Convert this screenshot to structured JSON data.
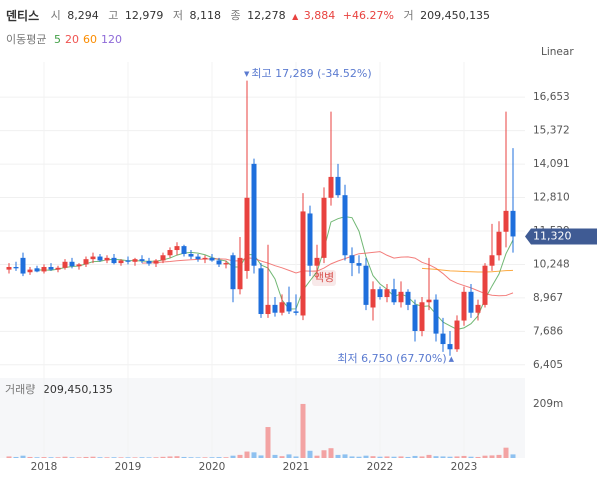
{
  "chart_data": {
    "type": "candlestick",
    "header": {
      "name": "덴티스",
      "open_label": "시",
      "open": "8,294",
      "high_label": "고",
      "high": "12,979",
      "low_label": "저",
      "low": "8,118",
      "close_label": "종",
      "close": "12,278",
      "change_arrow": "▲",
      "change": "3,884",
      "change_pct": "+46.27%",
      "volume_label": "거",
      "volume": "209,450,135"
    },
    "ma_label": "이동평균",
    "scale_label": "Linear",
    "event_label": "액병",
    "high_annotation": {
      "arrow": "▼",
      "text": "최고 17,289 (-34.52%)"
    },
    "low_annotation": {
      "arrow": "▲",
      "text": "최저 6,750 (67.70%)"
    },
    "categories": [
      null,
      null,
      null,
      null,
      null,
      "2018",
      null,
      null,
      null,
      null,
      null,
      null,
      null,
      null,
      null,
      null,
      null,
      "2019",
      null,
      null,
      null,
      null,
      null,
      null,
      null,
      null,
      null,
      null,
      null,
      "2020",
      null,
      null,
      null,
      null,
      null,
      null,
      null,
      null,
      null,
      null,
      null,
      "2021",
      null,
      null,
      null,
      null,
      null,
      null,
      null,
      null,
      null,
      null,
      null,
      "2022",
      null,
      null,
      null,
      null,
      null,
      null,
      null,
      null,
      null,
      null,
      null,
      "2023",
      null,
      null,
      null,
      null,
      null,
      null,
      null
    ],
    "candles": {
      "up_color": "#e8423f",
      "down_color": "#1f6fdc",
      "open": [
        10050,
        10150,
        10500,
        9950,
        10100,
        9980,
        10150,
        10050,
        10120,
        10350,
        10180,
        10250,
        10450,
        10550,
        10400,
        10500,
        10300,
        10400,
        10350,
        10450,
        10380,
        10280,
        10400,
        10600,
        10800,
        10950,
        10650,
        10550,
        10450,
        10500,
        10400,
        10250,
        10600,
        9300,
        10000,
        14100,
        10100,
        8350,
        8700,
        8400,
        8800,
        8450,
        8294,
        12200,
        10200,
        10500,
        12800,
        13600,
        12900,
        10600,
        10300,
        10200,
        8600,
        9300,
        9000,
        9300,
        8800,
        9200,
        8700,
        7700,
        8800,
        8900,
        7600,
        7200,
        7000,
        8100,
        9200,
        8400,
        8700,
        10200,
        10600,
        11500,
        12300
      ],
      "high": [
        10300,
        10350,
        10700,
        10150,
        10200,
        10250,
        10300,
        10200,
        10450,
        10500,
        10300,
        10550,
        10700,
        10650,
        10600,
        10650,
        10450,
        10550,
        10500,
        10600,
        10500,
        10450,
        10700,
        10900,
        11100,
        11000,
        10800,
        10650,
        10600,
        10650,
        10500,
        10400,
        10700,
        11300,
        17289,
        14300,
        10300,
        11000,
        9000,
        9100,
        9400,
        9100,
        12979,
        12500,
        11000,
        13200,
        16100,
        14100,
        13300,
        10900,
        10600,
        10500,
        9600,
        9400,
        9500,
        9700,
        9600,
        9300,
        8900,
        9000,
        10500,
        9100,
        8200,
        7700,
        8300,
        9400,
        9500,
        8900,
        10300,
        11800,
        11900,
        16100,
        14700
      ],
      "low": [
        9900,
        10000,
        9800,
        9850,
        9950,
        9900,
        10000,
        9950,
        10050,
        10100,
        10050,
        10150,
        10300,
        10350,
        10300,
        10250,
        10200,
        10250,
        10200,
        10300,
        10200,
        10150,
        10300,
        10500,
        10600,
        10550,
        10450,
        10350,
        10300,
        10350,
        10150,
        10100,
        8800,
        9100,
        9700,
        9900,
        8200,
        8200,
        8250,
        8300,
        8350,
        8300,
        8118,
        9800,
        9700,
        10300,
        12500,
        12800,
        10400,
        9800,
        9900,
        8500,
        8100,
        8900,
        8800,
        8700,
        8600,
        8500,
        7300,
        7500,
        8500,
        7300,
        6900,
        6750,
        6900,
        7900,
        8200,
        8100,
        8600,
        10000,
        10400,
        10900,
        10700
      ],
      "close": [
        10150,
        10100,
        9900,
        10050,
        9980,
        10150,
        10050,
        10120,
        10350,
        10180,
        10250,
        10450,
        10550,
        10400,
        10500,
        10300,
        10400,
        10350,
        10450,
        10380,
        10280,
        10400,
        10600,
        10800,
        10950,
        10650,
        10550,
        10450,
        10500,
        10400,
        10250,
        10300,
        9300,
        10500,
        12800,
        10200,
        8350,
        8700,
        8400,
        8800,
        8450,
        8394,
        12278,
        10200,
        10500,
        12800,
        13600,
        12900,
        10600,
        10300,
        10200,
        8700,
        9300,
        9000,
        9300,
        8800,
        9200,
        8700,
        7700,
        8800,
        8900,
        7600,
        7200,
        7000,
        8100,
        9200,
        8400,
        8700,
        10200,
        10600,
        11500,
        12300,
        11320
      ]
    },
    "series": [
      {
        "name": "5",
        "color": "#43a047",
        "values": [
          null,
          null,
          null,
          null,
          10036,
          10036,
          10026,
          10070,
          10130,
          10170,
          10190,
          10270,
          10356,
          10366,
          10430,
          10440,
          10430,
          10390,
          10400,
          10376,
          10372,
          10372,
          10422,
          10492,
          10606,
          10680,
          10710,
          10680,
          10620,
          10510,
          10430,
          10380,
          10150,
          10150,
          10630,
          10620,
          10230,
          10110,
          9690,
          8890,
          8540,
          8549,
          9264,
          9624,
          9964,
          10834,
          11876,
          12000,
          12080,
          12040,
          11520,
          10540,
          9820,
          9500,
          9300,
          9020,
          9120,
          9000,
          8740,
          8640,
          8660,
          8340,
          8040,
          7900,
          7760,
          7820,
          7980,
          8280,
          8920,
          9420,
          9880,
          10660,
          11184
        ]
      },
      {
        "name": "20",
        "color": "#ef5350",
        "values": [
          null,
          null,
          null,
          null,
          null,
          null,
          null,
          null,
          null,
          null,
          null,
          null,
          null,
          null,
          null,
          null,
          null,
          null,
          null,
          10300,
          10310,
          10320,
          10340,
          10360,
          10390,
          10410,
          10430,
          10440,
          10450,
          10460,
          10460,
          10450,
          10380,
          10390,
          10500,
          10480,
          10380,
          10300,
          10200,
          10120,
          10020,
          9920,
          10000,
          9990,
          9990,
          10110,
          10270,
          10380,
          10470,
          10570,
          10660,
          10680,
          10710,
          10740,
          10600,
          10490,
          10530,
          10540,
          10490,
          10330,
          10240,
          10100,
          9900,
          9660,
          9530,
          9440,
          9350,
          9240,
          9130,
          9070,
          9050,
          9060,
          9160
        ]
      },
      {
        "name": "60",
        "color": "#fb8c00",
        "values": [
          null,
          null,
          null,
          null,
          null,
          null,
          null,
          null,
          null,
          null,
          null,
          null,
          null,
          null,
          null,
          null,
          null,
          null,
          null,
          null,
          null,
          null,
          null,
          null,
          null,
          null,
          null,
          null,
          null,
          null,
          null,
          null,
          null,
          null,
          null,
          null,
          null,
          null,
          null,
          null,
          null,
          null,
          null,
          null,
          null,
          null,
          null,
          null,
          null,
          null,
          null,
          null,
          null,
          null,
          null,
          null,
          null,
          null,
          null,
          10100,
          10080,
          10060,
          10030,
          10000,
          9990,
          9980,
          9970,
          9960,
          9960,
          9970,
          9990,
          10010,
          10020
        ]
      },
      {
        "name": "120",
        "color": "#8e6ad8",
        "values": [
          null,
          null,
          null,
          null,
          null,
          null,
          null,
          null,
          null,
          null,
          null,
          null,
          null,
          null,
          null,
          null,
          null,
          null,
          null,
          null,
          null,
          null,
          null,
          null,
          null,
          null,
          null,
          null,
          null,
          null,
          null,
          null,
          null,
          null,
          null,
          null,
          null,
          null,
          null,
          null,
          null,
          null,
          null,
          null,
          null,
          null,
          null,
          null,
          null,
          null,
          null,
          null,
          null,
          null,
          null,
          null,
          null,
          null,
          null,
          null,
          null,
          null,
          null,
          null,
          null,
          null,
          null,
          null,
          null,
          null,
          null,
          null,
          null
        ]
      }
    ],
    "ylim": [
      5900,
      18000
    ],
    "yticks": [
      {
        "value": 6405,
        "label": "6,405"
      },
      {
        "value": 7686,
        "label": "7,686"
      },
      {
        "value": 8967,
        "label": "8,967"
      },
      {
        "value": 10248,
        "label": "10,248"
      },
      {
        "value": 11529,
        "label": "11,529"
      },
      {
        "value": 12810,
        "label": "12,810"
      },
      {
        "value": 14091,
        "label": "14,091"
      },
      {
        "value": 15372,
        "label": "15,372"
      },
      {
        "value": 16653,
        "label": "16,653"
      }
    ],
    "last_price": {
      "value": 11320,
      "label": "11,320"
    },
    "grid": true,
    "volume": {
      "label": "거래량",
      "total": "209,450,135",
      "ylim": [
        0,
        310000000
      ],
      "yticks": [
        {
          "value": 209000000,
          "label": "209m"
        }
      ],
      "up_color": "#f3a3a3",
      "down_color": "#8ec1f0",
      "values": [
        6000000,
        4000000,
        9000000,
        4000000,
        3000000,
        3500000,
        3000000,
        2800000,
        5000000,
        3000000,
        2500000,
        4000000,
        5000000,
        3000000,
        2800000,
        3000000,
        2500000,
        2600000,
        2400000,
        3000000,
        2500000,
        2800000,
        4500000,
        6000000,
        7000000,
        4000000,
        3000000,
        2500000,
        2600000,
        3000000,
        3500000,
        3000000,
        9000000,
        12000000,
        25000000,
        22000000,
        10000000,
        120000000,
        12000000,
        7000000,
        14000000,
        6000000,
        209450135,
        28000000,
        9000000,
        30000000,
        38000000,
        12000000,
        14000000,
        6000000,
        5000000,
        9000000,
        7000000,
        5000000,
        6000000,
        5000000,
        6000000,
        4000000,
        8000000,
        6000000,
        12000000,
        7000000,
        6000000,
        5000000,
        6000000,
        8000000,
        5000000,
        4000000,
        9000000,
        10000000,
        12000000,
        40000000,
        14000000
      ]
    }
  }
}
